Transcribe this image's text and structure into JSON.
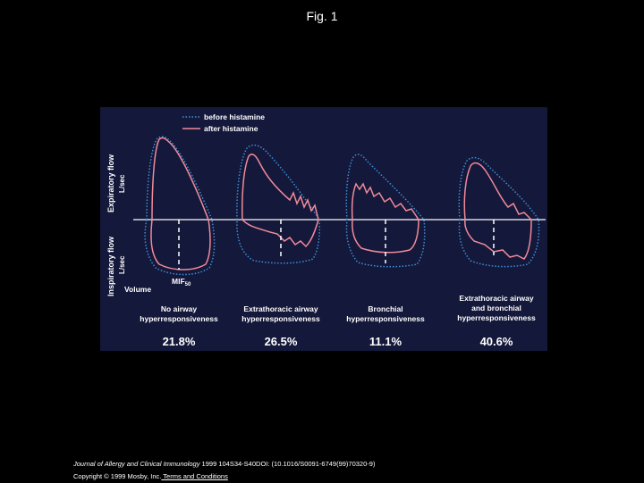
{
  "slide": {
    "title": "Fig. 1"
  },
  "colors": {
    "background": "#000000",
    "panel": "#14183a",
    "before": "#3f8fd6",
    "after": "#f08a9a",
    "text": "#ffffff",
    "axis": "#ffffff"
  },
  "chart_data": {
    "type": "line",
    "title": "",
    "legend": [
      {
        "label": "before histamine",
        "style": "dotted",
        "color": "#3f8fd6"
      },
      {
        "label": "after histamine",
        "style": "solid",
        "color": "#f08a9a"
      }
    ],
    "legend_position": "top-right",
    "ylabel_expiratory": "Expiratory flow",
    "ylabel_expiratory_unit": "L/sec",
    "ylabel_inspiratory": "Inspiratory flow",
    "ylabel_inspiratory_unit": "L/sec",
    "xlabel": "Volume",
    "mif_label": "MIF",
    "mif_sub": "50",
    "panels": [
      {
        "label1": "No airway",
        "label2": "hyperresponsiveness",
        "percent": "21.8%"
      },
      {
        "label1": "Extrathoracic airway",
        "label2": "hyperresponsiveness",
        "percent": "26.5%"
      },
      {
        "label1": "Bronchial",
        "label2": "hyperresponsiveness",
        "percent": "11.1%"
      },
      {
        "label1": "Extrathoracic airway",
        "label2": "and bronchial",
        "label3": "hyperresponsiveness",
        "percent": "40.6%"
      }
    ]
  },
  "footer": {
    "journal": "Journal of Allergy and Clinical Immunology",
    "citation": " 1999 104S34-S40DOI: (10.1016/S0091-6749(99)70320-9)",
    "copyright": "Copyright © 1999 Mosby, Inc.",
    "terms_link": " Terms and Conditions"
  }
}
